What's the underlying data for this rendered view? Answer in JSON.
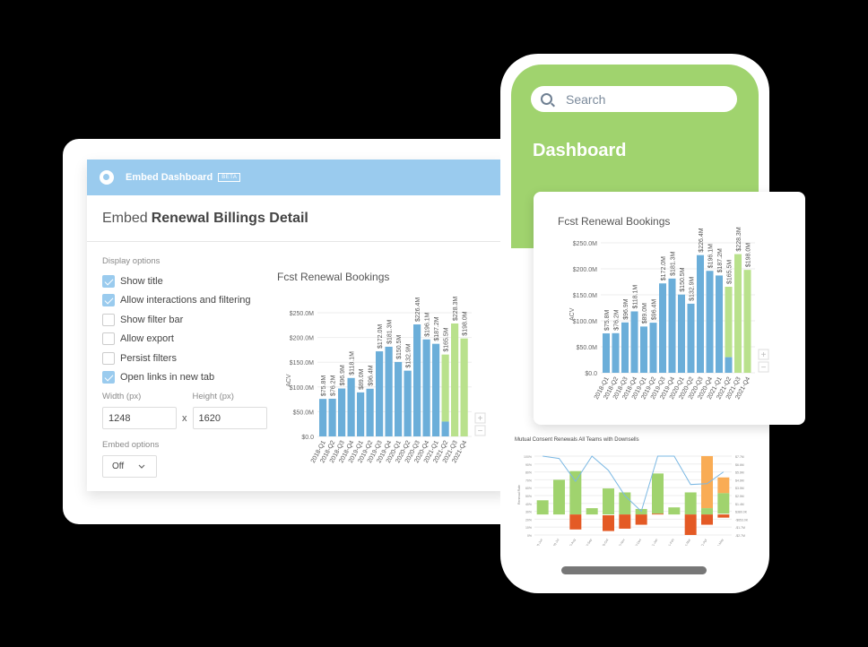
{
  "embed_dialog": {
    "header_title": "Embed Dashboard",
    "beta_badge": "BETA",
    "title_prefix": "Embed",
    "title_name": "Renewal Billings Detail",
    "display_options_label": "Display options",
    "options": [
      {
        "label": "Show title",
        "checked": true
      },
      {
        "label": "Allow interactions and filtering",
        "checked": true
      },
      {
        "label": "Show filter bar",
        "checked": false
      },
      {
        "label": "Allow export",
        "checked": false
      },
      {
        "label": "Persist filters",
        "checked": false
      },
      {
        "label": "Open links in new tab",
        "checked": true
      }
    ],
    "width_label": "Width (px)",
    "width_value": "1248",
    "height_label": "Height (px)",
    "height_value": "1620",
    "times": "x",
    "embed_options_label": "Embed options",
    "embed_options_value": "Off"
  },
  "phone": {
    "search_placeholder": "Search",
    "dashboard_title": "Dashboard"
  },
  "colors": {
    "header_blue": "#9acbee",
    "bar_blue": "#6baed9",
    "bar_green": "#b9e18c",
    "phone_green": "#a0d36e",
    "mini_green": "#a0d36e",
    "mini_red": "#e45a25",
    "mini_orange": "#f9ac55",
    "line_blue": "#7bb8e3"
  },
  "chart_data": [
    {
      "type": "bar",
      "title": "Fcst Renewal Bookings",
      "xlabel": "",
      "ylabel": "ACV",
      "ylim": [
        0,
        250
      ],
      "yticks": [
        "$0.0",
        "$50.0M",
        "$100.0M",
        "$150.0M",
        "$200.0M",
        "$250.0M"
      ],
      "categories": [
        "2018-Q1",
        "2018-Q2",
        "2018-Q3",
        "2018-Q4",
        "2019-Q1",
        "2019-Q2",
        "2019-Q3",
        "2019-Q4",
        "2020-Q1",
        "2020-Q2",
        "2020-Q3",
        "2020-Q4",
        "2021-Q1",
        "2021-Q2",
        "2021-Q3",
        "2021-Q4"
      ],
      "values": [
        75.8,
        76.2,
        96.9,
        118.1,
        89.0,
        96.4,
        172.0,
        181.3,
        150.5,
        132.9,
        226.4,
        196.1,
        187.2,
        165.5,
        228.3,
        198.0
      ],
      "labels": [
        "$75.8M",
        "$76.2M",
        "$96.9M",
        "$118.1M",
        "$89.0M",
        "$96.4M",
        "$172.0M",
        "$181.3M",
        "$150.5M",
        "$132.9M",
        "$226.4M",
        "$196.1M",
        "$187.2M",
        "$165.5M",
        "$228.3M",
        "$198.0M"
      ],
      "actual_portion": [
        75.8,
        76.2,
        96.9,
        118.1,
        89.0,
        96.4,
        172.0,
        181.3,
        150.5,
        132.9,
        226.4,
        196.1,
        187.2,
        30,
        0,
        0
      ],
      "series": [
        {
          "name": "Actual",
          "color": "#6baed9"
        },
        {
          "name": "Forecast",
          "color": "#b9e18c"
        }
      ],
      "grid": true
    },
    {
      "type": "bar",
      "title": "Mutual Consent Renewals All Teams with Downsells",
      "ylabel": "Renewal Rate",
      "yticks_left": [
        "0%",
        "10%",
        "20%",
        "30%",
        "40%",
        "50%",
        "60%",
        "70%",
        "80%",
        "90%",
        "100%"
      ],
      "yticks_right": [
        "-$2.7M",
        "-$1.7M",
        "-$653.0K",
        "$380.0K",
        "$1.4M",
        "$2.5M",
        "$3.5M",
        "$4.6M",
        "$5.6M",
        "$6.6M",
        "$7.7M"
      ],
      "categories": [
        "2020-Jun",
        "2020-Jul",
        "2020-Aug",
        "2020-Sep",
        "2020-Oct",
        "2020-Nov",
        "2020-Dec",
        "2021-Jan",
        "2021-Feb",
        "2021-Mar",
        "2021-Apr",
        "2021-May"
      ],
      "green_ranges": [
        [
          26,
          44
        ],
        [
          26,
          70
        ],
        [
          26,
          81
        ],
        [
          26,
          34
        ],
        [
          26,
          59
        ],
        [
          26,
          54
        ],
        [
          26,
          33
        ],
        [
          27,
          78
        ],
        [
          26,
          35
        ],
        [
          26,
          54
        ],
        [
          26,
          34
        ],
        [
          27,
          53
        ]
      ],
      "red_ranges": [
        [
          26,
          26
        ],
        [
          26,
          26
        ],
        [
          7,
          26
        ],
        [
          26,
          26
        ],
        [
          5,
          25
        ],
        [
          8,
          26
        ],
        [
          13,
          26
        ],
        [
          26,
          27
        ],
        [
          26,
          26
        ],
        [
          0,
          26
        ],
        [
          13,
          26
        ],
        [
          22,
          26
        ]
      ],
      "orange_ranges": [
        [
          0,
          0
        ],
        [
          0,
          0
        ],
        [
          0,
          0
        ],
        [
          0,
          0
        ],
        [
          0,
          0
        ],
        [
          0,
          0
        ],
        [
          0,
          0
        ],
        [
          0,
          0
        ],
        [
          0,
          0
        ],
        [
          0,
          0
        ],
        [
          34,
          100
        ],
        [
          53,
          73
        ]
      ],
      "line": [
        100,
        97,
        68,
        100,
        82,
        50,
        30,
        100,
        100,
        64,
        65,
        80
      ]
    }
  ]
}
